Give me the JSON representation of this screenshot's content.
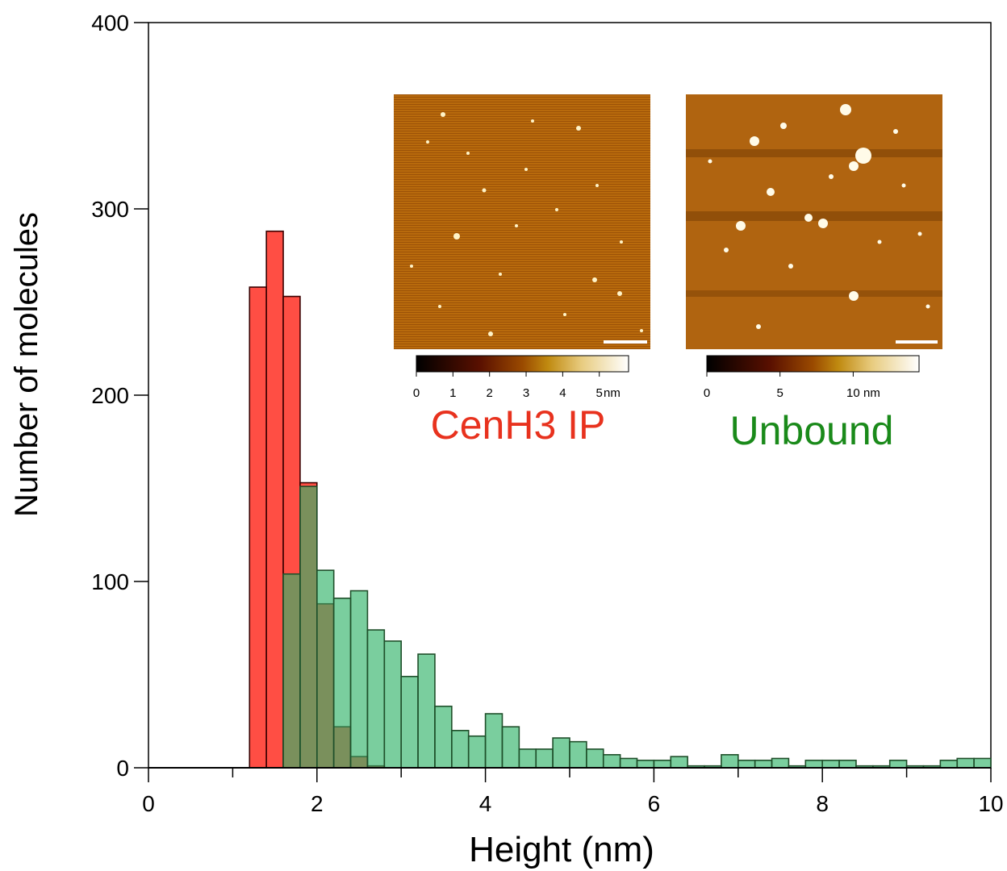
{
  "chart_data": {
    "type": "bar",
    "xlabel": "Height (nm)",
    "ylabel": "Number of molecules",
    "xlim": [
      0,
      10
    ],
    "ylim": [
      0,
      400
    ],
    "x_ticks": [
      "0",
      "2",
      "4",
      "6",
      "8",
      "10"
    ],
    "y_ticks": [
      "0",
      "100",
      "200",
      "300",
      "400"
    ],
    "bin_width": 0.2,
    "legend": "none",
    "grid": false,
    "series": [
      {
        "name": "CenH3 IP",
        "color": "#ff3b30",
        "bin_start": [
          1.2,
          1.4,
          1.6,
          1.8,
          2.0,
          2.2,
          2.4,
          2.6
        ],
        "values": [
          258,
          288,
          253,
          153,
          88,
          22,
          6,
          1
        ]
      },
      {
        "name": "Unbound",
        "color": "#33b36a",
        "bin_start": [
          1.6,
          1.8,
          2.0,
          2.2,
          2.4,
          2.6,
          2.8,
          3.0,
          3.2,
          3.4,
          3.6,
          3.8,
          4.0,
          4.2,
          4.4,
          4.6,
          4.8,
          5.0,
          5.2,
          5.4,
          5.6,
          5.8,
          6.0,
          6.2,
          6.4,
          6.6,
          6.8,
          7.0,
          7.2,
          7.4,
          7.6,
          7.8,
          8.0,
          8.2,
          8.4,
          8.6,
          8.8,
          9.0,
          9.2,
          9.4,
          9.6,
          9.8
        ],
        "values": [
          104,
          151,
          106,
          91,
          95,
          74,
          68,
          49,
          61,
          33,
          20,
          17,
          29,
          22,
          10,
          10,
          16,
          14,
          10,
          7,
          5,
          4,
          4,
          6,
          1,
          1,
          7,
          4,
          4,
          5,
          1,
          4,
          4,
          4,
          1,
          1,
          4,
          1,
          1,
          4,
          5,
          5
        ]
      }
    ],
    "insets": [
      {
        "label": "CenH3 IP",
        "label_color": "#e8321e",
        "colorbar_ticks": [
          "0",
          "1",
          "2",
          "3",
          "4",
          "5"
        ],
        "colorbar_unit": "nm",
        "colorbar_max": 5.8
      },
      {
        "label": "Unbound",
        "label_color": "#1a8a1a",
        "colorbar_ticks": [
          "0",
          "5",
          "10"
        ],
        "colorbar_unit": "nm",
        "colorbar_max": 14.5
      }
    ]
  }
}
